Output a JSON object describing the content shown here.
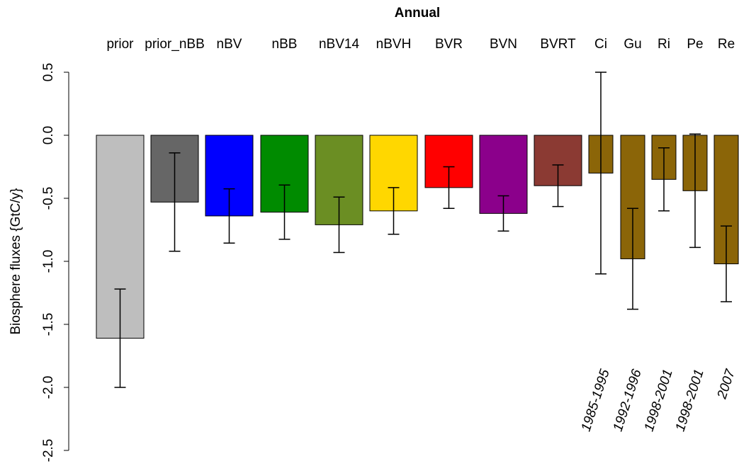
{
  "chart_data": {
    "type": "bar",
    "title": "Annual",
    "y_label": "Biosphere fluxes {GtC/y}",
    "categories": [
      "prior",
      "prior_nBB",
      "nBV",
      "nBB",
      "nBV14",
      "nBVH",
      "BVR",
      "BVN",
      "BVRT",
      "Ci",
      "Gu",
      "Ri",
      "Pe",
      "Re"
    ],
    "values": [
      -1.61,
      -0.53,
      -0.64,
      -0.61,
      -0.71,
      -0.6,
      -0.415,
      -0.62,
      -0.4,
      -0.3,
      -0.98,
      -0.35,
      -0.44,
      -1.02
    ],
    "errors": [
      0.39,
      0.39,
      0.215,
      0.215,
      0.22,
      0.185,
      0.165,
      0.14,
      0.165,
      0.8,
      0.4,
      0.25,
      0.45,
      0.3
    ],
    "colors": [
      "#bebebe",
      "#666666",
      "#0000ff",
      "#008b00",
      "#6b8e23",
      "#ffd700",
      "#ff0000",
      "#8b008b",
      "#8b3a33",
      "#8b6508",
      "#8b6508",
      "#8b6508",
      "#8b6508",
      "#8b6508"
    ],
    "period_labels": [
      null,
      null,
      null,
      null,
      null,
      null,
      null,
      null,
      null,
      "1985-1995",
      "1992-1996",
      "1998-2001",
      "1998-2001",
      "2007"
    ],
    "ylim": [
      -2.5,
      0.5
    ],
    "yticks": [
      0.5,
      {
        "value": 0,
        "label": "0.0"
      },
      -0.5,
      {
        "value": -1,
        "label": "-1.0"
      },
      -1.5,
      {
        "value": -2,
        "label": "-2.0"
      },
      -2.5
    ]
  }
}
